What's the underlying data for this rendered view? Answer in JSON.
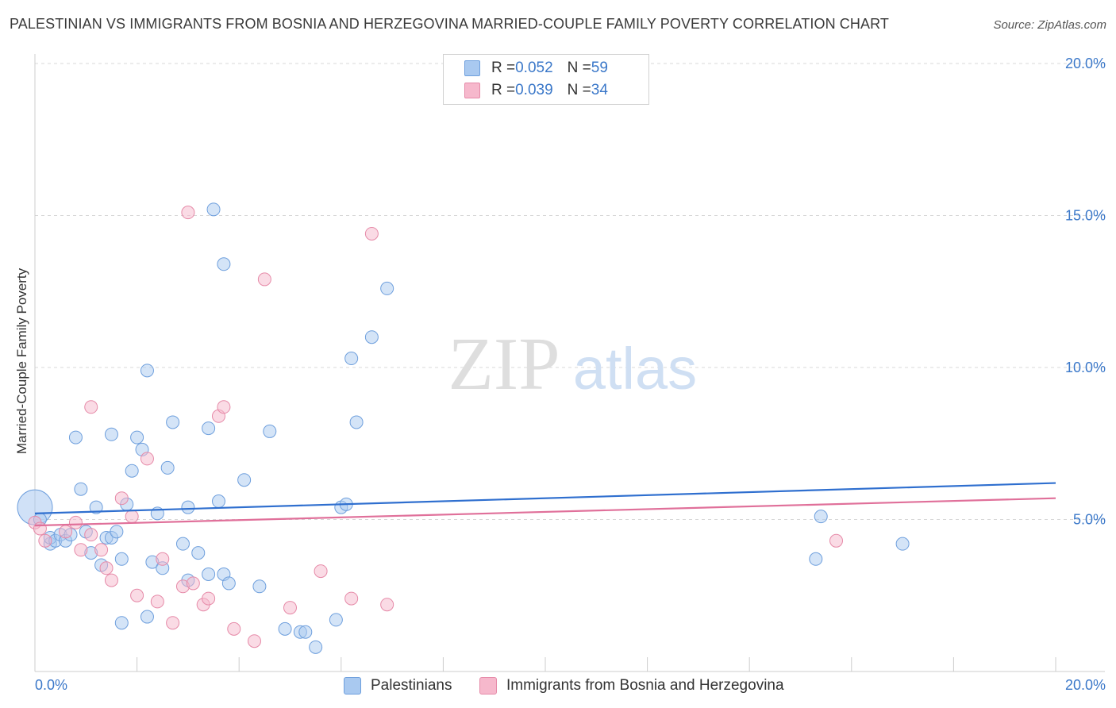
{
  "title": "PALESTINIAN VS IMMIGRANTS FROM BOSNIA AND HERZEGOVINA MARRIED-COUPLE FAMILY POVERTY CORRELATION CHART",
  "source": "Source: ZipAtlas.com",
  "watermark": {
    "zip": "ZIP",
    "atlas": "atlas"
  },
  "legend": {
    "rows": [
      {
        "r_label": "R = ",
        "r_value": "0.052",
        "n_label": "N = ",
        "n_value": "59"
      },
      {
        "r_label": "R = ",
        "r_value": "0.039",
        "n_label": "N = ",
        "n_value": "34"
      }
    ]
  },
  "colors": {
    "blue_fill": "#a9c9f0",
    "blue_stroke": "#6e9fdd",
    "blue_line": "#2f6fcf",
    "pink_fill": "#f6b8cc",
    "pink_stroke": "#e68aa8",
    "pink_line": "#e0709a",
    "axis_text": "#3b78c9",
    "grid": "#d8d8d8"
  },
  "chart_data": {
    "type": "scatter",
    "ylabel": "Married-Couple Family Poverty",
    "xlim": [
      0,
      20
    ],
    "ylim": [
      0,
      20
    ],
    "x_tick_labels": [
      "0.0%",
      "20.0%"
    ],
    "y_tick_labels": [
      "5.0%",
      "10.0%",
      "15.0%",
      "20.0%"
    ],
    "y_ticks": [
      5,
      10,
      15,
      20
    ],
    "series": [
      {
        "name": "Palestinians",
        "color": "blue",
        "trend": [
          [
            0,
            5.2
          ],
          [
            20,
            6.2
          ]
        ],
        "points": [
          [
            0.0,
            5.4
          ],
          [
            0.3,
            4.2
          ],
          [
            0.3,
            4.4
          ],
          [
            0.4,
            4.3
          ],
          [
            0.5,
            4.5
          ],
          [
            0.6,
            4.3
          ],
          [
            0.7,
            4.5
          ],
          [
            0.8,
            7.7
          ],
          [
            0.9,
            6.0
          ],
          [
            1.0,
            4.6
          ],
          [
            1.1,
            3.9
          ],
          [
            1.2,
            5.4
          ],
          [
            1.3,
            3.5
          ],
          [
            1.4,
            4.4
          ],
          [
            1.5,
            4.4
          ],
          [
            1.5,
            7.8
          ],
          [
            1.6,
            4.6
          ],
          [
            1.7,
            3.7
          ],
          [
            1.7,
            1.6
          ],
          [
            1.8,
            5.5
          ],
          [
            1.9,
            6.6
          ],
          [
            2.0,
            7.7
          ],
          [
            2.1,
            7.3
          ],
          [
            2.2,
            9.9
          ],
          [
            2.2,
            1.8
          ],
          [
            2.3,
            3.6
          ],
          [
            2.4,
            5.2
          ],
          [
            2.5,
            3.4
          ],
          [
            2.6,
            6.7
          ],
          [
            2.7,
            8.2
          ],
          [
            2.9,
            4.2
          ],
          [
            3.0,
            3.0
          ],
          [
            3.0,
            5.4
          ],
          [
            3.2,
            3.9
          ],
          [
            3.4,
            3.2
          ],
          [
            3.4,
            8.0
          ],
          [
            3.5,
            15.2
          ],
          [
            3.6,
            5.6
          ],
          [
            3.7,
            13.4
          ],
          [
            3.7,
            3.2
          ],
          [
            3.8,
            2.9
          ],
          [
            4.1,
            6.3
          ],
          [
            4.4,
            2.8
          ],
          [
            4.6,
            7.9
          ],
          [
            4.9,
            1.4
          ],
          [
            5.2,
            1.3
          ],
          [
            5.3,
            1.3
          ],
          [
            5.5,
            0.8
          ],
          [
            5.9,
            1.7
          ],
          [
            6.0,
            5.4
          ],
          [
            6.1,
            5.5
          ],
          [
            6.2,
            10.3
          ],
          [
            6.3,
            8.2
          ],
          [
            6.6,
            11.0
          ],
          [
            6.9,
            12.6
          ],
          [
            15.3,
            3.7
          ],
          [
            15.4,
            5.1
          ],
          [
            17.0,
            4.2
          ],
          [
            0.1,
            5.0
          ]
        ]
      },
      {
        "name": "Immigrants from Bosnia and Herzegovina",
        "color": "pink",
        "trend": [
          [
            0,
            4.8
          ],
          [
            20,
            5.7
          ]
        ],
        "points": [
          [
            0.0,
            4.9
          ],
          [
            0.1,
            4.7
          ],
          [
            0.2,
            4.3
          ],
          [
            0.6,
            4.6
          ],
          [
            0.8,
            4.9
          ],
          [
            0.9,
            4.0
          ],
          [
            1.1,
            4.5
          ],
          [
            1.1,
            8.7
          ],
          [
            1.3,
            4.0
          ],
          [
            1.4,
            3.4
          ],
          [
            1.5,
            3.0
          ],
          [
            1.7,
            5.7
          ],
          [
            1.9,
            5.1
          ],
          [
            2.0,
            2.5
          ],
          [
            2.2,
            7.0
          ],
          [
            2.4,
            2.3
          ],
          [
            2.5,
            3.7
          ],
          [
            2.7,
            1.6
          ],
          [
            2.9,
            2.8
          ],
          [
            3.0,
            15.1
          ],
          [
            3.1,
            2.9
          ],
          [
            3.3,
            2.2
          ],
          [
            3.4,
            2.4
          ],
          [
            3.6,
            8.4
          ],
          [
            3.7,
            8.7
          ],
          [
            3.9,
            1.4
          ],
          [
            4.3,
            1.0
          ],
          [
            4.5,
            12.9
          ],
          [
            5.0,
            2.1
          ],
          [
            5.6,
            3.3
          ],
          [
            6.2,
            2.4
          ],
          [
            6.6,
            14.4
          ],
          [
            6.9,
            2.2
          ],
          [
            15.7,
            4.3
          ]
        ]
      }
    ]
  },
  "bottom_legend": [
    {
      "label": "Palestinians"
    },
    {
      "label": "Immigrants from Bosnia and Herzegovina"
    }
  ]
}
